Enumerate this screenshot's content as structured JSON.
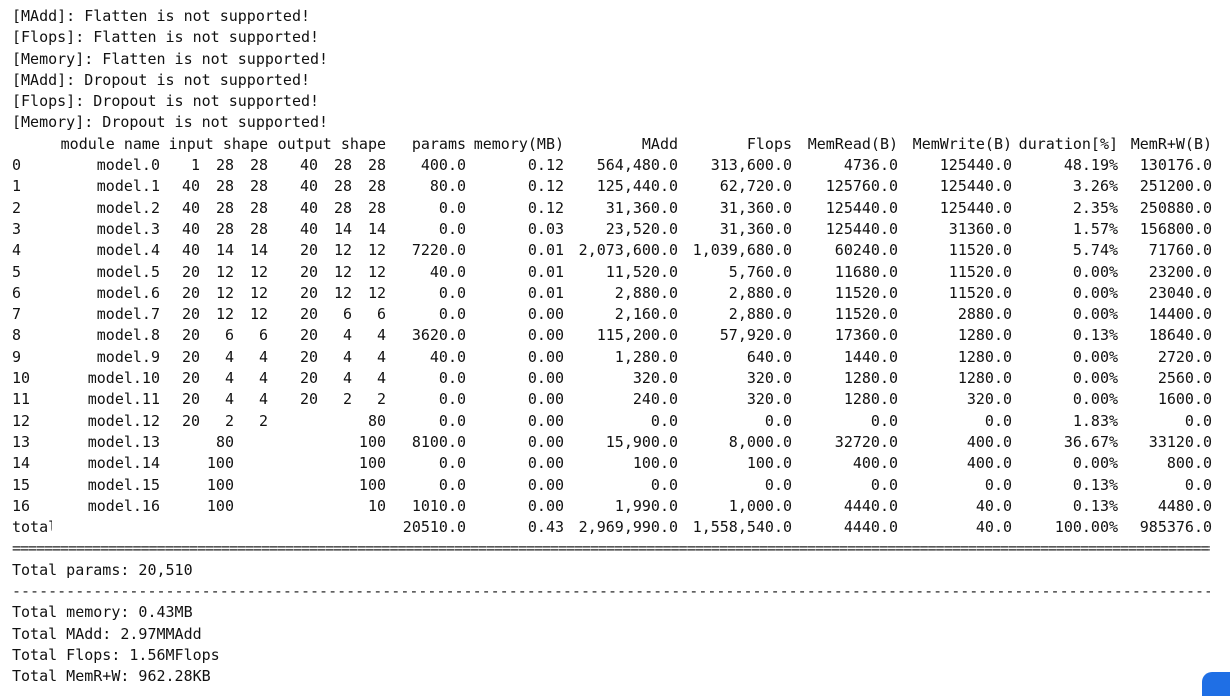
{
  "warnings": [
    "[MAdd]: Flatten is not supported!",
    "[Flops]: Flatten is not supported!",
    "[Memory]: Flatten is not supported!",
    "[MAdd]: Dropout is not supported!",
    "[Flops]: Dropout is not supported!",
    "[Memory]: Dropout is not supported!"
  ],
  "table": {
    "headers": {
      "index": "",
      "module_name": "module name",
      "input_shape": "input shape",
      "output_shape": "output shape",
      "params": "params",
      "memory": "memory(MB)",
      "madd": "MAdd",
      "flops": "Flops",
      "memread": "MemRead(B)",
      "memwrite": "MemWrite(B)",
      "duration": "duration[%]",
      "memrw": "MemR+W(B)"
    },
    "rows": [
      {
        "idx": "0",
        "name": "model.0",
        "in": [
          "1",
          "28",
          "28"
        ],
        "out": [
          "40",
          "28",
          "28"
        ],
        "params": "400.0",
        "memory": "0.12",
        "madd": "564,480.0",
        "flops": "313,600.0",
        "memread": "4736.0",
        "memwrite": "125440.0",
        "duration": "48.19%",
        "memrw": "130176.0"
      },
      {
        "idx": "1",
        "name": "model.1",
        "in": [
          "40",
          "28",
          "28"
        ],
        "out": [
          "40",
          "28",
          "28"
        ],
        "params": "80.0",
        "memory": "0.12",
        "madd": "125,440.0",
        "flops": "62,720.0",
        "memread": "125760.0",
        "memwrite": "125440.0",
        "duration": "3.26%",
        "memrw": "251200.0"
      },
      {
        "idx": "2",
        "name": "model.2",
        "in": [
          "40",
          "28",
          "28"
        ],
        "out": [
          "40",
          "28",
          "28"
        ],
        "params": "0.0",
        "memory": "0.12",
        "madd": "31,360.0",
        "flops": "31,360.0",
        "memread": "125440.0",
        "memwrite": "125440.0",
        "duration": "2.35%",
        "memrw": "250880.0"
      },
      {
        "idx": "3",
        "name": "model.3",
        "in": [
          "40",
          "28",
          "28"
        ],
        "out": [
          "40",
          "14",
          "14"
        ],
        "params": "0.0",
        "memory": "0.03",
        "madd": "23,520.0",
        "flops": "31,360.0",
        "memread": "125440.0",
        "memwrite": "31360.0",
        "duration": "1.57%",
        "memrw": "156800.0"
      },
      {
        "idx": "4",
        "name": "model.4",
        "in": [
          "40",
          "14",
          "14"
        ],
        "out": [
          "20",
          "12",
          "12"
        ],
        "params": "7220.0",
        "memory": "0.01",
        "madd": "2,073,600.0",
        "flops": "1,039,680.0",
        "memread": "60240.0",
        "memwrite": "11520.0",
        "duration": "5.74%",
        "memrw": "71760.0"
      },
      {
        "idx": "5",
        "name": "model.5",
        "in": [
          "20",
          "12",
          "12"
        ],
        "out": [
          "20",
          "12",
          "12"
        ],
        "params": "40.0",
        "memory": "0.01",
        "madd": "11,520.0",
        "flops": "5,760.0",
        "memread": "11680.0",
        "memwrite": "11520.0",
        "duration": "0.00%",
        "memrw": "23200.0"
      },
      {
        "idx": "6",
        "name": "model.6",
        "in": [
          "20",
          "12",
          "12"
        ],
        "out": [
          "20",
          "12",
          "12"
        ],
        "params": "0.0",
        "memory": "0.01",
        "madd": "2,880.0",
        "flops": "2,880.0",
        "memread": "11520.0",
        "memwrite": "11520.0",
        "duration": "0.00%",
        "memrw": "23040.0"
      },
      {
        "idx": "7",
        "name": "model.7",
        "in": [
          "20",
          "12",
          "12"
        ],
        "out": [
          "20",
          "6",
          "6"
        ],
        "params": "0.0",
        "memory": "0.00",
        "madd": "2,160.0",
        "flops": "2,880.0",
        "memread": "11520.0",
        "memwrite": "2880.0",
        "duration": "0.00%",
        "memrw": "14400.0"
      },
      {
        "idx": "8",
        "name": "model.8",
        "in": [
          "20",
          "6",
          "6"
        ],
        "out": [
          "20",
          "4",
          "4"
        ],
        "params": "3620.0",
        "memory": "0.00",
        "madd": "115,200.0",
        "flops": "57,920.0",
        "memread": "17360.0",
        "memwrite": "1280.0",
        "duration": "0.13%",
        "memrw": "18640.0"
      },
      {
        "idx": "9",
        "name": "model.9",
        "in": [
          "20",
          "4",
          "4"
        ],
        "out": [
          "20",
          "4",
          "4"
        ],
        "params": "40.0",
        "memory": "0.00",
        "madd": "1,280.0",
        "flops": "640.0",
        "memread": "1440.0",
        "memwrite": "1280.0",
        "duration": "0.00%",
        "memrw": "2720.0"
      },
      {
        "idx": "10",
        "name": "model.10",
        "in": [
          "20",
          "4",
          "4"
        ],
        "out": [
          "20",
          "4",
          "4"
        ],
        "params": "0.0",
        "memory": "0.00",
        "madd": "320.0",
        "flops": "320.0",
        "memread": "1280.0",
        "memwrite": "1280.0",
        "duration": "0.00%",
        "memrw": "2560.0"
      },
      {
        "idx": "11",
        "name": "model.11",
        "in": [
          "20",
          "4",
          "4"
        ],
        "out": [
          "20",
          "2",
          "2"
        ],
        "params": "0.0",
        "memory": "0.00",
        "madd": "240.0",
        "flops": "320.0",
        "memread": "1280.0",
        "memwrite": "320.0",
        "duration": "0.00%",
        "memrw": "1600.0"
      },
      {
        "idx": "12",
        "name": "model.12",
        "in": [
          "20",
          "2",
          "2"
        ],
        "out": [
          "",
          "",
          "80"
        ],
        "params": "0.0",
        "memory": "0.00",
        "madd": "0.0",
        "flops": "0.0",
        "memread": "0.0",
        "memwrite": "0.0",
        "duration": "1.83%",
        "memrw": "0.0"
      },
      {
        "idx": "13",
        "name": "model.13",
        "in": [
          "",
          "80",
          ""
        ],
        "out": [
          "",
          "",
          "100"
        ],
        "params": "8100.0",
        "memory": "0.00",
        "madd": "15,900.0",
        "flops": "8,000.0",
        "memread": "32720.0",
        "memwrite": "400.0",
        "duration": "36.67%",
        "memrw": "33120.0"
      },
      {
        "idx": "14",
        "name": "model.14",
        "in": [
          "",
          "100",
          ""
        ],
        "out": [
          "",
          "",
          "100"
        ],
        "params": "0.0",
        "memory": "0.00",
        "madd": "100.0",
        "flops": "100.0",
        "memread": "400.0",
        "memwrite": "400.0",
        "duration": "0.00%",
        "memrw": "800.0"
      },
      {
        "idx": "15",
        "name": "model.15",
        "in": [
          "",
          "100",
          ""
        ],
        "out": [
          "",
          "",
          "100"
        ],
        "params": "0.0",
        "memory": "0.00",
        "madd": "0.0",
        "flops": "0.0",
        "memread": "0.0",
        "memwrite": "0.0",
        "duration": "0.13%",
        "memrw": "0.0"
      },
      {
        "idx": "16",
        "name": "model.16",
        "in": [
          "",
          "100",
          ""
        ],
        "out": [
          "",
          "",
          "10"
        ],
        "params": "1010.0",
        "memory": "0.00",
        "madd": "1,990.0",
        "flops": "1,000.0",
        "memread": "4440.0",
        "memwrite": "40.0",
        "duration": "0.13%",
        "memrw": "4480.0"
      }
    ],
    "total_row": {
      "idx": "total",
      "name": "",
      "in": [
        "",
        "",
        ""
      ],
      "out": [
        "",
        "",
        ""
      ],
      "params": "20510.0",
      "memory": "0.43",
      "madd": "2,969,990.0",
      "flops": "1,558,540.0",
      "memread": "4440.0",
      "memwrite": "40.0",
      "duration": "100.00%",
      "memrw": "985376.0"
    }
  },
  "summary": {
    "total_params": "Total params: 20,510",
    "total_memory": "Total memory: 0.43MB",
    "total_madd": "Total MAdd: 2.97MMAdd",
    "total_flops": "Total Flops: 1.56MFlops",
    "total_memrw": "Total MemR+W: 962.28KB"
  },
  "colors": {
    "text": "#111111",
    "background": "#ffffff",
    "corner_badge": "#1f6fe5"
  }
}
